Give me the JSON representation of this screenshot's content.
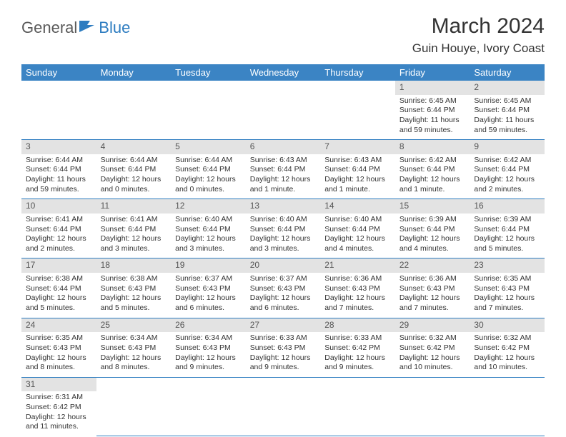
{
  "brand": {
    "name1": "General",
    "name2": "Blue"
  },
  "title": "March 2024",
  "subtitle": "Guin Houye, Ivory Coast",
  "weekdays": [
    "Sunday",
    "Monday",
    "Tuesday",
    "Wednesday",
    "Thursday",
    "Friday",
    "Saturday"
  ],
  "colors": {
    "header_bg": "#3b84c4",
    "header_fg": "#ffffff",
    "daynum_bg": "#e3e3e3",
    "border": "#2d7cc0"
  },
  "weeks": [
    {
      "nums": [
        "",
        "",
        "",
        "",
        "",
        "1",
        "2"
      ],
      "details": [
        "",
        "",
        "",
        "",
        "",
        "Sunrise: 6:45 AM\nSunset: 6:44 PM\nDaylight: 11 hours and 59 minutes.",
        "Sunrise: 6:45 AM\nSunset: 6:44 PM\nDaylight: 11 hours and 59 minutes."
      ]
    },
    {
      "nums": [
        "3",
        "4",
        "5",
        "6",
        "7",
        "8",
        "9"
      ],
      "details": [
        "Sunrise: 6:44 AM\nSunset: 6:44 PM\nDaylight: 11 hours and 59 minutes.",
        "Sunrise: 6:44 AM\nSunset: 6:44 PM\nDaylight: 12 hours and 0 minutes.",
        "Sunrise: 6:44 AM\nSunset: 6:44 PM\nDaylight: 12 hours and 0 minutes.",
        "Sunrise: 6:43 AM\nSunset: 6:44 PM\nDaylight: 12 hours and 1 minute.",
        "Sunrise: 6:43 AM\nSunset: 6:44 PM\nDaylight: 12 hours and 1 minute.",
        "Sunrise: 6:42 AM\nSunset: 6:44 PM\nDaylight: 12 hours and 1 minute.",
        "Sunrise: 6:42 AM\nSunset: 6:44 PM\nDaylight: 12 hours and 2 minutes."
      ]
    },
    {
      "nums": [
        "10",
        "11",
        "12",
        "13",
        "14",
        "15",
        "16"
      ],
      "details": [
        "Sunrise: 6:41 AM\nSunset: 6:44 PM\nDaylight: 12 hours and 2 minutes.",
        "Sunrise: 6:41 AM\nSunset: 6:44 PM\nDaylight: 12 hours and 3 minutes.",
        "Sunrise: 6:40 AM\nSunset: 6:44 PM\nDaylight: 12 hours and 3 minutes.",
        "Sunrise: 6:40 AM\nSunset: 6:44 PM\nDaylight: 12 hours and 3 minutes.",
        "Sunrise: 6:40 AM\nSunset: 6:44 PM\nDaylight: 12 hours and 4 minutes.",
        "Sunrise: 6:39 AM\nSunset: 6:44 PM\nDaylight: 12 hours and 4 minutes.",
        "Sunrise: 6:39 AM\nSunset: 6:44 PM\nDaylight: 12 hours and 5 minutes."
      ]
    },
    {
      "nums": [
        "17",
        "18",
        "19",
        "20",
        "21",
        "22",
        "23"
      ],
      "details": [
        "Sunrise: 6:38 AM\nSunset: 6:44 PM\nDaylight: 12 hours and 5 minutes.",
        "Sunrise: 6:38 AM\nSunset: 6:43 PM\nDaylight: 12 hours and 5 minutes.",
        "Sunrise: 6:37 AM\nSunset: 6:43 PM\nDaylight: 12 hours and 6 minutes.",
        "Sunrise: 6:37 AM\nSunset: 6:43 PM\nDaylight: 12 hours and 6 minutes.",
        "Sunrise: 6:36 AM\nSunset: 6:43 PM\nDaylight: 12 hours and 7 minutes.",
        "Sunrise: 6:36 AM\nSunset: 6:43 PM\nDaylight: 12 hours and 7 minutes.",
        "Sunrise: 6:35 AM\nSunset: 6:43 PM\nDaylight: 12 hours and 7 minutes."
      ]
    },
    {
      "nums": [
        "24",
        "25",
        "26",
        "27",
        "28",
        "29",
        "30"
      ],
      "details": [
        "Sunrise: 6:35 AM\nSunset: 6:43 PM\nDaylight: 12 hours and 8 minutes.",
        "Sunrise: 6:34 AM\nSunset: 6:43 PM\nDaylight: 12 hours and 8 minutes.",
        "Sunrise: 6:34 AM\nSunset: 6:43 PM\nDaylight: 12 hours and 9 minutes.",
        "Sunrise: 6:33 AM\nSunset: 6:43 PM\nDaylight: 12 hours and 9 minutes.",
        "Sunrise: 6:33 AM\nSunset: 6:42 PM\nDaylight: 12 hours and 9 minutes.",
        "Sunrise: 6:32 AM\nSunset: 6:42 PM\nDaylight: 12 hours and 10 minutes.",
        "Sunrise: 6:32 AM\nSunset: 6:42 PM\nDaylight: 12 hours and 10 minutes."
      ]
    },
    {
      "nums": [
        "31",
        "",
        "",
        "",
        "",
        "",
        ""
      ],
      "details": [
        "Sunrise: 6:31 AM\nSunset: 6:42 PM\nDaylight: 12 hours and 11 minutes.",
        "",
        "",
        "",
        "",
        "",
        ""
      ]
    }
  ]
}
